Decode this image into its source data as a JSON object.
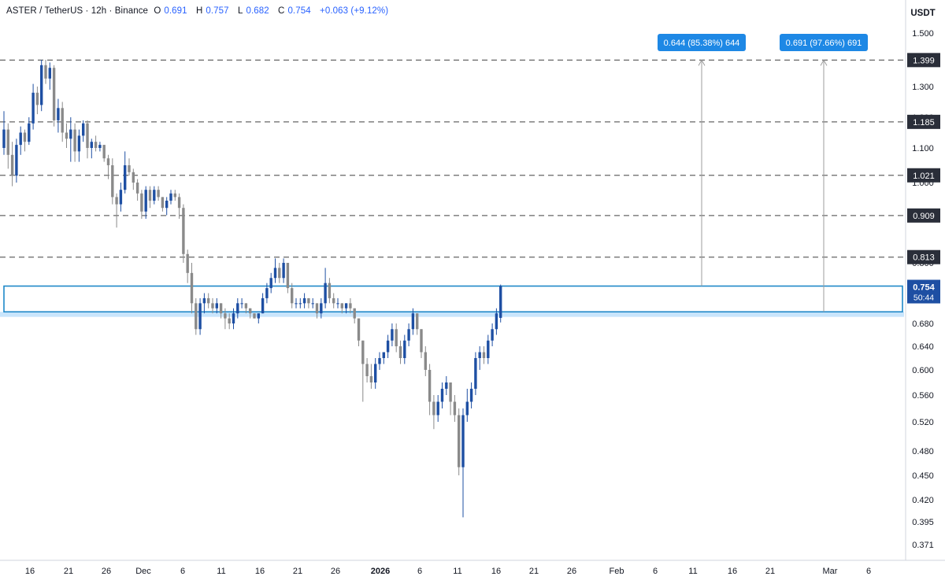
{
  "header": {
    "title": "ASTER / TetherUS · 12h · Binance",
    "open_label": "O",
    "open": "0.691",
    "high_label": "H",
    "high": "0.757",
    "low_label": "L",
    "low": "0.682",
    "close_label": "C",
    "close": "0.754",
    "change": "+0.063 (+9.12%)"
  },
  "chart_data": {
    "type": "candlestick",
    "y_axis_unit": "USDT",
    "y_ticks": [
      "1.500",
      "1.400",
      "1.300",
      "1.200",
      "1.100",
      "1.000",
      "0.900",
      "0.800",
      "0.680",
      "0.640",
      "0.600",
      "0.560",
      "0.520",
      "0.480",
      "0.450",
      "0.420",
      "0.395",
      "0.371"
    ],
    "y_tick_values": [
      1.5,
      1.4,
      1.3,
      1.2,
      1.1,
      1.0,
      0.9,
      0.8,
      0.68,
      0.64,
      0.6,
      0.56,
      0.52,
      0.48,
      0.45,
      0.42,
      0.395,
      0.371
    ],
    "x_ticks": [
      "16",
      "21",
      "26",
      "Dec",
      "6",
      "11",
      "16",
      "21",
      "26",
      "2026",
      "6",
      "11",
      "16",
      "21",
      "26",
      "Feb",
      "6",
      "11",
      "16",
      "21",
      "Mar",
      "6"
    ],
    "levels": [
      {
        "value": 1.399,
        "label": "1.399"
      },
      {
        "value": 1.185,
        "label": "1.185"
      },
      {
        "value": 1.021,
        "label": "1.021"
      },
      {
        "value": 0.909,
        "label": "0.909"
      },
      {
        "value": 0.813,
        "label": "0.813"
      }
    ],
    "current_price": {
      "label": "0.754",
      "countdown": "50:44"
    },
    "zone": {
      "top": 0.754,
      "bottom": 0.703
    },
    "support_band": {
      "top": 0.703,
      "bottom": 0.693
    },
    "projections": [
      {
        "label": "0.644 (85.38%) 644",
        "from": 0.754,
        "to": 1.399
      },
      {
        "label": "0.691 (97.66%) 691",
        "from": 0.703,
        "to": 1.399
      }
    ],
    "colors": {
      "up": "#1e4fa3",
      "down": "#8a8a8a",
      "level": "#666666",
      "zone": "#1e88c8",
      "band": "#bbdefb",
      "label_bg": "#1e88e5"
    },
    "candles": [
      [
        1.1,
        1.22,
        1.08,
        1.16
      ],
      [
        1.16,
        1.18,
        1.04,
        1.08
      ],
      [
        1.08,
        1.12,
        0.99,
        1.02
      ],
      [
        1.02,
        1.13,
        1.0,
        1.11
      ],
      [
        1.11,
        1.17,
        1.08,
        1.15
      ],
      [
        1.15,
        1.16,
        1.09,
        1.12
      ],
      [
        1.12,
        1.2,
        1.11,
        1.18
      ],
      [
        1.18,
        1.31,
        1.16,
        1.28
      ],
      [
        1.28,
        1.3,
        1.21,
        1.24
      ],
      [
        1.24,
        1.4,
        1.22,
        1.38
      ],
      [
        1.38,
        1.4,
        1.31,
        1.33
      ],
      [
        1.33,
        1.39,
        1.29,
        1.37
      ],
      [
        1.37,
        1.38,
        1.17,
        1.19
      ],
      [
        1.19,
        1.26,
        1.15,
        1.23
      ],
      [
        1.23,
        1.25,
        1.12,
        1.15
      ],
      [
        1.15,
        1.18,
        1.1,
        1.13
      ],
      [
        1.13,
        1.2,
        1.06,
        1.16
      ],
      [
        1.16,
        1.18,
        1.06,
        1.09
      ],
      [
        1.09,
        1.16,
        1.06,
        1.14
      ],
      [
        1.14,
        1.19,
        1.12,
        1.18
      ],
      [
        1.18,
        1.19,
        1.07,
        1.1
      ],
      [
        1.1,
        1.13,
        1.07,
        1.12
      ],
      [
        1.12,
        1.14,
        1.09,
        1.1
      ],
      [
        1.1,
        1.12,
        1.09,
        1.11
      ],
      [
        1.11,
        1.11,
        1.06,
        1.07
      ],
      [
        1.07,
        1.08,
        1.01,
        1.05
      ],
      [
        1.05,
        1.07,
        0.94,
        0.96
      ],
      [
        0.96,
        0.97,
        0.88,
        0.94
      ],
      [
        0.94,
        1.0,
        0.92,
        0.98
      ],
      [
        0.98,
        1.09,
        0.97,
        1.05
      ],
      [
        1.05,
        1.07,
        1.02,
        1.03
      ],
      [
        1.03,
        1.04,
        0.98,
        1.0
      ],
      [
        1.0,
        1.01,
        0.95,
        0.97
      ],
      [
        0.97,
        0.98,
        0.9,
        0.92
      ],
      [
        0.92,
        0.99,
        0.9,
        0.98
      ],
      [
        0.98,
        0.99,
        0.93,
        0.95
      ],
      [
        0.95,
        0.99,
        0.94,
        0.98
      ],
      [
        0.98,
        0.99,
        0.95,
        0.96
      ],
      [
        0.96,
        0.96,
        0.92,
        0.93
      ],
      [
        0.93,
        0.96,
        0.91,
        0.95
      ],
      [
        0.95,
        0.98,
        0.94,
        0.97
      ],
      [
        0.97,
        0.98,
        0.95,
        0.96
      ],
      [
        0.96,
        0.97,
        0.9,
        0.93
      ],
      [
        0.93,
        0.94,
        0.8,
        0.82
      ],
      [
        0.82,
        0.83,
        0.76,
        0.78
      ],
      [
        0.78,
        0.8,
        0.7,
        0.72
      ],
      [
        0.72,
        0.73,
        0.66,
        0.67
      ],
      [
        0.67,
        0.73,
        0.66,
        0.72
      ],
      [
        0.72,
        0.74,
        0.7,
        0.73
      ],
      [
        0.73,
        0.74,
        0.71,
        0.72
      ],
      [
        0.72,
        0.73,
        0.7,
        0.71
      ],
      [
        0.71,
        0.73,
        0.7,
        0.72
      ],
      [
        0.72,
        0.72,
        0.69,
        0.7
      ],
      [
        0.7,
        0.71,
        0.67,
        0.69
      ],
      [
        0.69,
        0.7,
        0.67,
        0.68
      ],
      [
        0.68,
        0.71,
        0.67,
        0.7
      ],
      [
        0.7,
        0.73,
        0.69,
        0.72
      ],
      [
        0.72,
        0.73,
        0.71,
        0.72
      ],
      [
        0.72,
        0.72,
        0.7,
        0.71
      ],
      [
        0.71,
        0.71,
        0.69,
        0.7
      ],
      [
        0.7,
        0.7,
        0.69,
        0.69
      ],
      [
        0.69,
        0.7,
        0.68,
        0.7
      ],
      [
        0.7,
        0.74,
        0.7,
        0.73
      ],
      [
        0.73,
        0.76,
        0.72,
        0.75
      ],
      [
        0.75,
        0.78,
        0.74,
        0.77
      ],
      [
        0.77,
        0.81,
        0.76,
        0.79
      ],
      [
        0.79,
        0.8,
        0.76,
        0.77
      ],
      [
        0.77,
        0.81,
        0.76,
        0.8
      ],
      [
        0.8,
        0.8,
        0.74,
        0.75
      ],
      [
        0.75,
        0.76,
        0.71,
        0.72
      ],
      [
        0.72,
        0.73,
        0.71,
        0.72
      ],
      [
        0.72,
        0.73,
        0.71,
        0.72
      ],
      [
        0.72,
        0.74,
        0.71,
        0.73
      ],
      [
        0.73,
        0.73,
        0.71,
        0.72
      ],
      [
        0.72,
        0.73,
        0.71,
        0.72
      ],
      [
        0.72,
        0.72,
        0.69,
        0.7
      ],
      [
        0.7,
        0.73,
        0.69,
        0.72
      ],
      [
        0.72,
        0.79,
        0.71,
        0.76
      ],
      [
        0.76,
        0.77,
        0.72,
        0.73
      ],
      [
        0.73,
        0.74,
        0.71,
        0.72
      ],
      [
        0.72,
        0.73,
        0.71,
        0.72
      ],
      [
        0.72,
        0.72,
        0.7,
        0.71
      ],
      [
        0.71,
        0.72,
        0.7,
        0.72
      ],
      [
        0.72,
        0.73,
        0.7,
        0.71
      ],
      [
        0.71,
        0.71,
        0.68,
        0.69
      ],
      [
        0.69,
        0.69,
        0.64,
        0.65
      ],
      [
        0.65,
        0.65,
        0.55,
        0.61
      ],
      [
        0.61,
        0.62,
        0.58,
        0.59
      ],
      [
        0.59,
        0.61,
        0.57,
        0.58
      ],
      [
        0.58,
        0.62,
        0.57,
        0.61
      ],
      [
        0.61,
        0.63,
        0.6,
        0.62
      ],
      [
        0.62,
        0.63,
        0.61,
        0.63
      ],
      [
        0.63,
        0.66,
        0.62,
        0.65
      ],
      [
        0.65,
        0.68,
        0.64,
        0.67
      ],
      [
        0.67,
        0.68,
        0.63,
        0.64
      ],
      [
        0.64,
        0.65,
        0.61,
        0.62
      ],
      [
        0.62,
        0.66,
        0.61,
        0.65
      ],
      [
        0.65,
        0.68,
        0.64,
        0.67
      ],
      [
        0.67,
        0.71,
        0.66,
        0.7
      ],
      [
        0.7,
        0.7,
        0.66,
        0.67
      ],
      [
        0.67,
        0.67,
        0.62,
        0.63
      ],
      [
        0.63,
        0.64,
        0.59,
        0.6
      ],
      [
        0.6,
        0.61,
        0.53,
        0.55
      ],
      [
        0.55,
        0.56,
        0.51,
        0.53
      ],
      [
        0.53,
        0.56,
        0.52,
        0.55
      ],
      [
        0.55,
        0.58,
        0.54,
        0.57
      ],
      [
        0.57,
        0.59,
        0.56,
        0.58
      ],
      [
        0.58,
        0.58,
        0.53,
        0.55
      ],
      [
        0.55,
        0.56,
        0.52,
        0.53
      ],
      [
        0.53,
        0.54,
        0.45,
        0.46
      ],
      [
        0.46,
        0.54,
        0.4,
        0.53
      ],
      [
        0.53,
        0.57,
        0.52,
        0.55
      ],
      [
        0.55,
        0.58,
        0.54,
        0.57
      ],
      [
        0.57,
        0.63,
        0.56,
        0.62
      ],
      [
        0.62,
        0.64,
        0.6,
        0.63
      ],
      [
        0.63,
        0.64,
        0.61,
        0.62
      ],
      [
        0.62,
        0.66,
        0.61,
        0.65
      ],
      [
        0.65,
        0.68,
        0.64,
        0.67
      ],
      [
        0.67,
        0.71,
        0.66,
        0.7
      ],
      [
        0.691,
        0.757,
        0.682,
        0.754
      ]
    ]
  }
}
